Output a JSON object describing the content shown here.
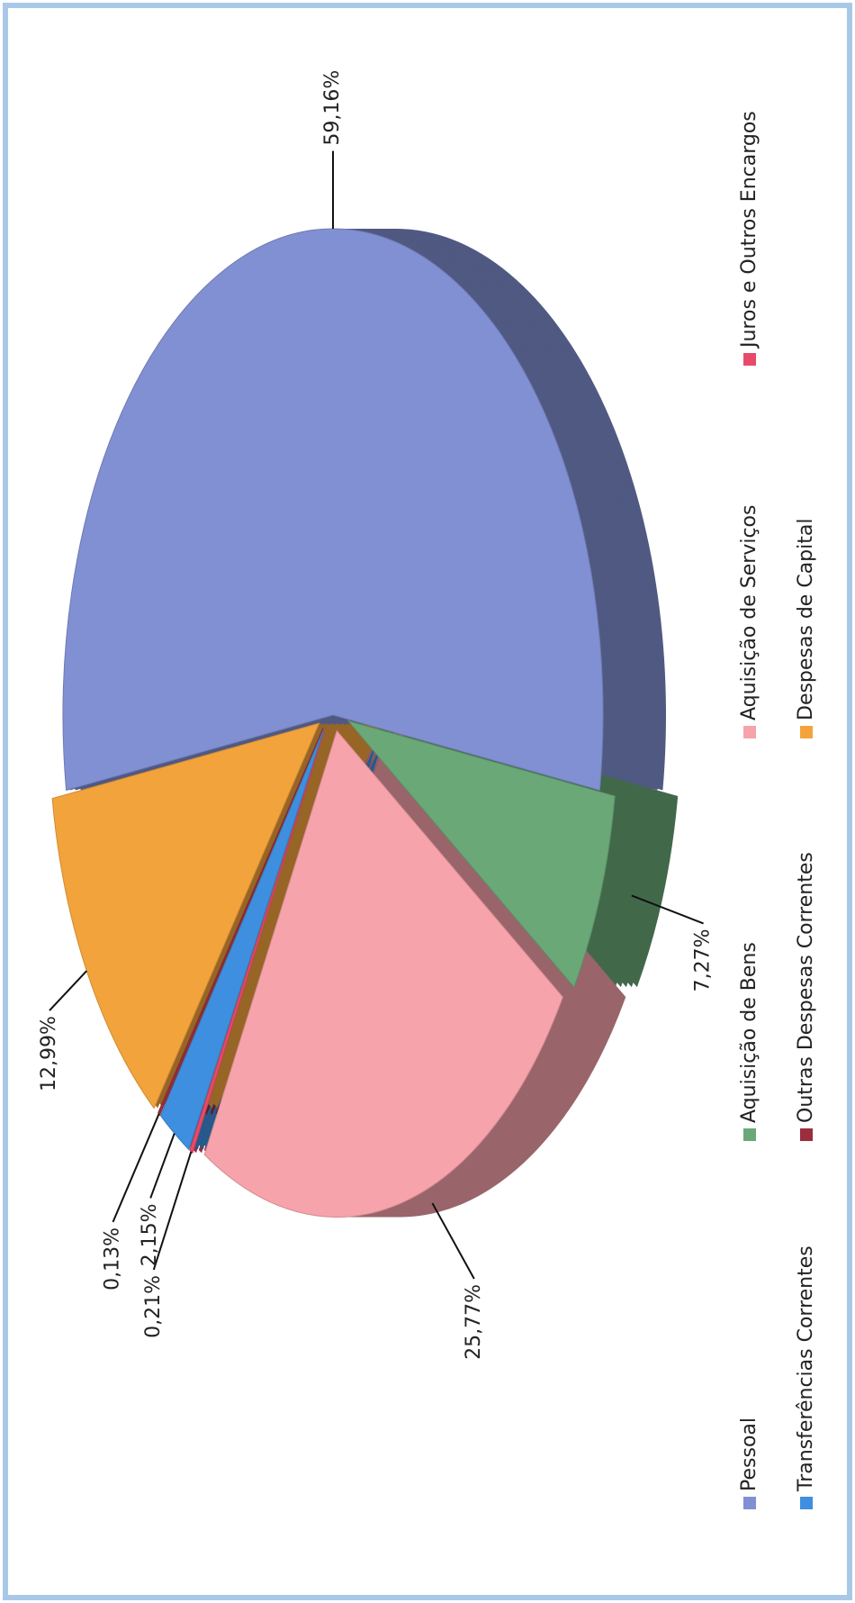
{
  "chart_data": {
    "type": "pie",
    "categories": [
      "Pessoal",
      "Aquisição de Bens",
      "Aquisição de Serviços",
      "Juros e Outros Encargos",
      "Transferências Correntes",
      "Outras Despesas Correntes",
      "Despesas de Capital"
    ],
    "values": [
      59.16,
      7.27,
      25.77,
      0.21,
      2.15,
      0.13,
      12.99
    ],
    "value_labels": [
      "59,16%",
      "7,27%",
      "25,77%",
      "0,21%",
      "2,15%",
      "0,13%",
      "12,99%"
    ],
    "colors": [
      "#8190d2",
      "#6aa878",
      "#f7a3ab",
      "#e84a6a",
      "#3f8fe0",
      "#9b2d3d",
      "#f3a33c"
    ]
  }
}
